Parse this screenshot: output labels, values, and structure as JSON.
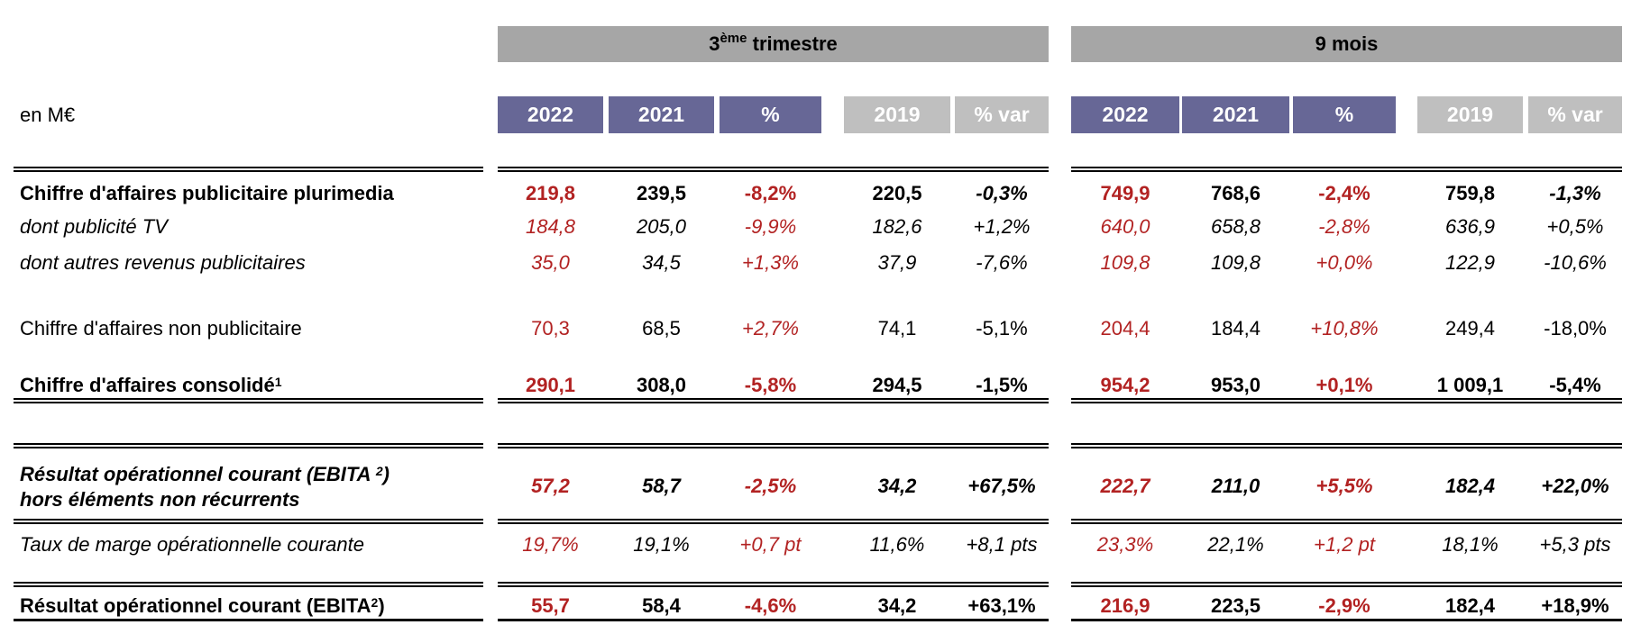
{
  "colors": {
    "period_band": "#a6a6a6",
    "current_years": "#676796",
    "reference_year": "#bfbfbf",
    "highlight_red": "#b22222"
  },
  "header": {
    "unit_label": "en M€",
    "q3": {
      "prefix": "3",
      "sup": "ème",
      "suffix": " trimestre"
    },
    "nine_months": "9 mois",
    "columns": [
      "2022",
      "2021",
      "%",
      "2019",
      "% var"
    ]
  },
  "rows": [
    {
      "label": "Chiffre d'affaires publicitaire plurimedia",
      "q3": [
        "219,8",
        "239,5",
        "-8,2%",
        "220,5",
        "-0,3%"
      ],
      "m9": [
        "749,9",
        "768,6",
        "-2,4%",
        "759,8",
        "-1,3%"
      ]
    },
    {
      "label": "dont publicité TV",
      "q3": [
        "184,8",
        "205,0",
        "-9,9%",
        "182,6",
        "+1,2%"
      ],
      "m9": [
        "640,0",
        "658,8",
        "-2,8%",
        "636,9",
        "+0,5%"
      ]
    },
    {
      "label": "dont autres revenus publicitaires",
      "q3": [
        "35,0",
        "34,5",
        "+1,3%",
        "37,9",
        "-7,6%"
      ],
      "m9": [
        "109,8",
        "109,8",
        "+0,0%",
        "122,9",
        "-10,6%"
      ]
    },
    {
      "label": "Chiffre d'affaires non publicitaire",
      "q3": [
        "70,3",
        "68,5",
        "+2,7%",
        "74,1",
        "-5,1%"
      ],
      "m9": [
        "204,4",
        "184,4",
        "+10,8%",
        "249,4",
        "-18,0%"
      ]
    },
    {
      "label": "Chiffre d'affaires consolidé",
      "sup": "1",
      "q3": [
        "290,1",
        "308,0",
        "-5,8%",
        "294,5",
        "-1,5%"
      ],
      "m9": [
        "954,2",
        "953,0",
        "+0,1%",
        "1 009,1",
        "-5,4%"
      ]
    },
    {
      "label": "Résultat opérationnel courant (EBITA ",
      "sup": "2",
      "label_end": ")",
      "label_line2": "hors éléments non récurrents",
      "q3": [
        "57,2",
        "58,7",
        "-2,5%",
        "34,2",
        "+67,5%"
      ],
      "m9": [
        "222,7",
        "211,0",
        "+5,5%",
        "182,4",
        "+22,0%"
      ]
    },
    {
      "label": "Taux de marge opérationnelle courante",
      "q3": [
        "19,7%",
        "19,1%",
        "+0,7 pt",
        "11,6%",
        "+8,1 pts"
      ],
      "m9": [
        "23,3%",
        "22,1%",
        "+1,2 pt",
        "18,1%",
        "+5,3 pts"
      ]
    },
    {
      "label": "Résultat opérationnel courant (EBITA",
      "sup": "2",
      "label_end": ")",
      "q3": [
        "55,7",
        "58,4",
        "-4,6%",
        "34,2",
        "+63,1%"
      ],
      "m9": [
        "216,9",
        "223,5",
        "-2,9%",
        "182,4",
        "+18,9%"
      ]
    }
  ]
}
